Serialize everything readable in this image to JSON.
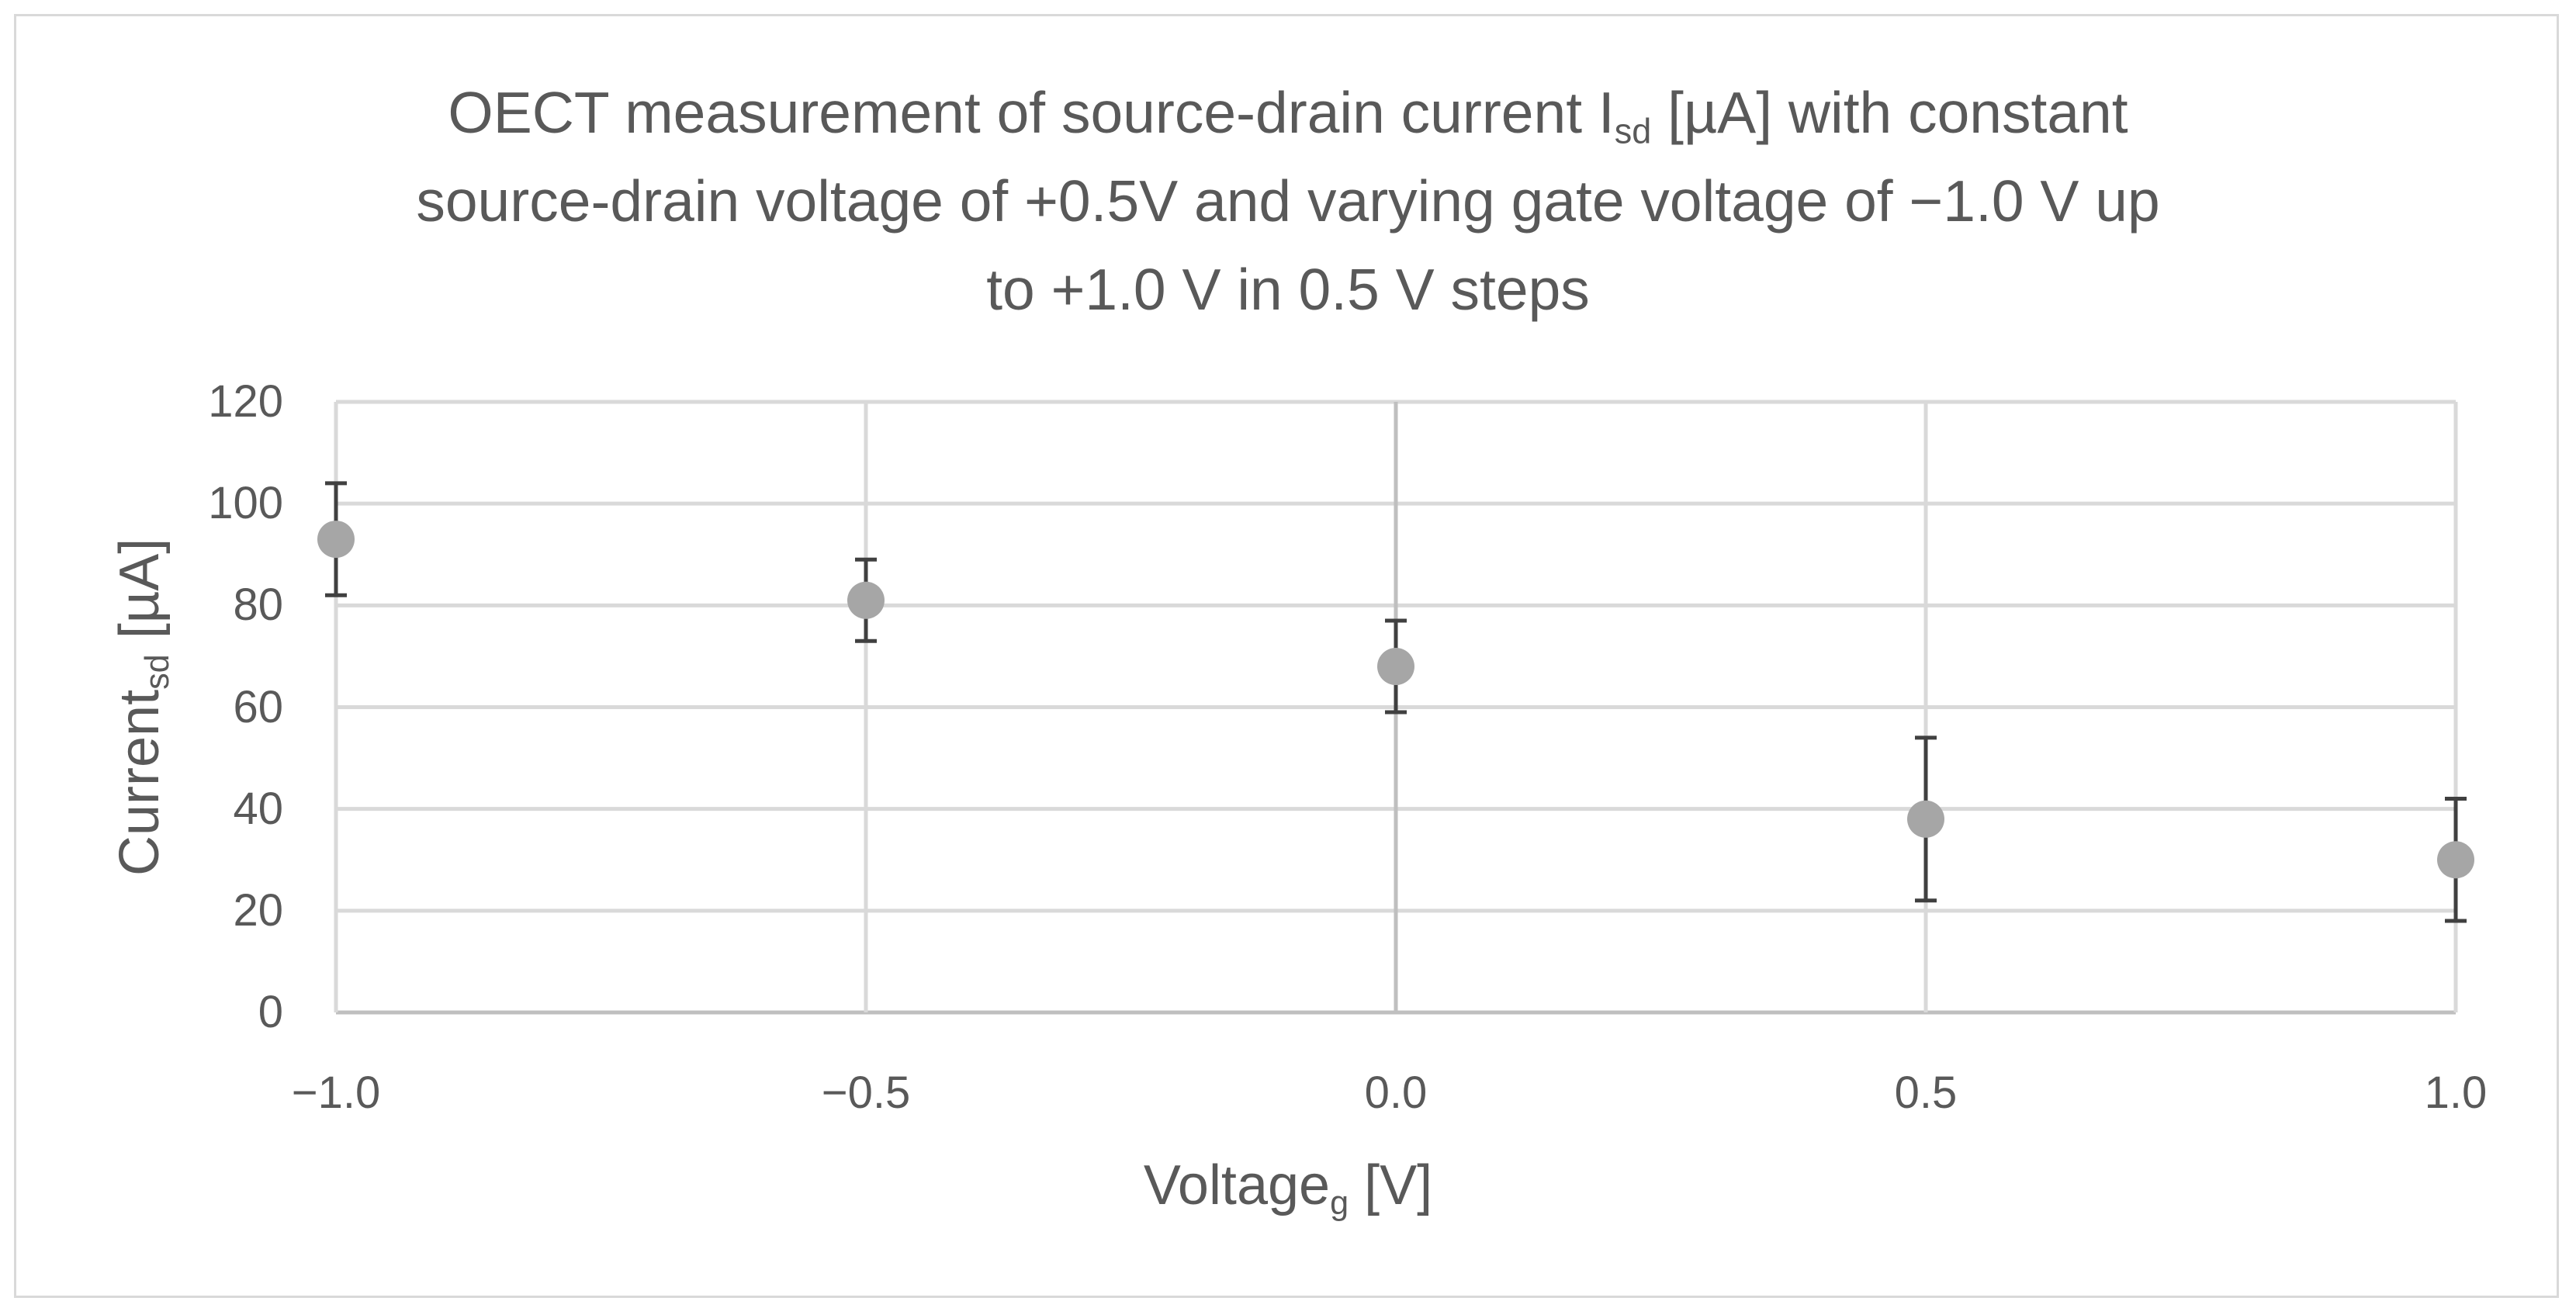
{
  "chart_data": {
    "type": "scatter",
    "title_lines": [
      {
        "pre": "OECT measurement of source-drain current I",
        "sub": "sd",
        "post": " [µA] with constant"
      },
      {
        "pre": "source-drain voltage of +0.5V and varying gate voltage of −1.0 V up",
        "sub": "",
        "post": ""
      },
      {
        "pre": "to +1.0 V in 0.5 V steps",
        "sub": "",
        "post": ""
      }
    ],
    "xlabel": {
      "pre": "Voltage",
      "sub": "g",
      "post": " [V]"
    },
    "ylabel": {
      "pre": "Current",
      "sub": "sd",
      "post": " [µA]"
    },
    "xlim": [
      -1.0,
      1.0
    ],
    "ylim": [
      0,
      120
    ],
    "x_ticks": [
      -1.0,
      -0.5,
      0.0,
      0.5,
      1.0
    ],
    "x_tick_labels": [
      "−1.0",
      "−0.5",
      "0.0",
      "0.5",
      "1.0"
    ],
    "y_ticks": [
      0,
      20,
      40,
      60,
      80,
      100,
      120
    ],
    "y_tick_labels": [
      "0",
      "20",
      "40",
      "60",
      "80",
      "100",
      "120"
    ],
    "grid": true,
    "series": [
      {
        "name": "Isd",
        "x": [
          -1.0,
          -0.5,
          0.0,
          0.5,
          1.0
        ],
        "y": [
          93,
          81,
          68,
          38,
          30
        ],
        "err_low": [
          82,
          73,
          59,
          22,
          18
        ],
        "err_high": [
          104,
          89,
          77,
          54,
          42
        ]
      }
    ],
    "colors": {
      "marker": "#a6a6a6",
      "error_bar": "#404040",
      "grid": "#d9d9d9",
      "axis": "#bfbfbf",
      "text": "#595959"
    }
  }
}
